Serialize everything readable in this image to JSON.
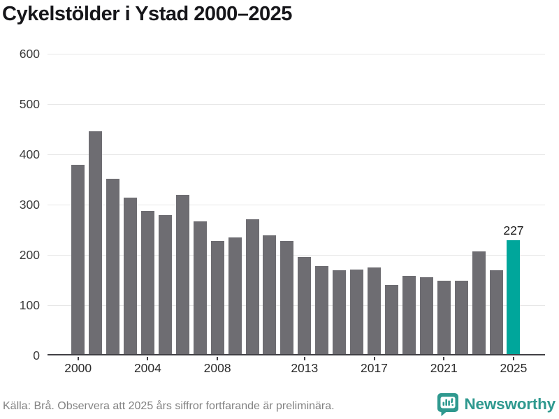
{
  "title": "Cykelstölder i Ystad 2000–2025",
  "chart_data": {
    "type": "bar",
    "categories": [
      "2000",
      "2001",
      "2002",
      "2003",
      "2004",
      "2005",
      "2006",
      "2007",
      "2008",
      "2009",
      "2010",
      "2011",
      "2012",
      "2013",
      "2014",
      "2015",
      "2016",
      "2017",
      "2018",
      "2019",
      "2020",
      "2021",
      "2022",
      "2023",
      "2024",
      "2025"
    ],
    "values": [
      376,
      443,
      349,
      311,
      285,
      276,
      316,
      264,
      225,
      232,
      268,
      236,
      225,
      193,
      175,
      167,
      168,
      172,
      138,
      155,
      153,
      146,
      146,
      204,
      166,
      227
    ],
    "title": "Cykelstölder i Ystad 2000–2025",
    "xlabel": "",
    "ylabel": "",
    "ylim": [
      0,
      600
    ],
    "y_ticks": [
      0,
      100,
      200,
      300,
      400,
      500,
      600
    ],
    "x_tick_labels": [
      "2000",
      "2004",
      "2008",
      "2013",
      "2017",
      "2021",
      "2025"
    ],
    "grid": "horizontal",
    "legend": "none",
    "bar_color": "#6e6d72",
    "highlight_color": "#00a69b",
    "highlight_category": "2025",
    "highlight_value_label": "227"
  },
  "footer": {
    "source_note": "Källa: Brå. Observera att 2025 års siffror fortfarande är preliminära.",
    "brand_name": "Newsworthy"
  },
  "colors": {
    "bar_gray": "#6e6d72",
    "accent_teal": "#00a69b",
    "logo_teal": "#2f998f",
    "axis": "#403f44",
    "gridline": "#e7e7e7"
  }
}
